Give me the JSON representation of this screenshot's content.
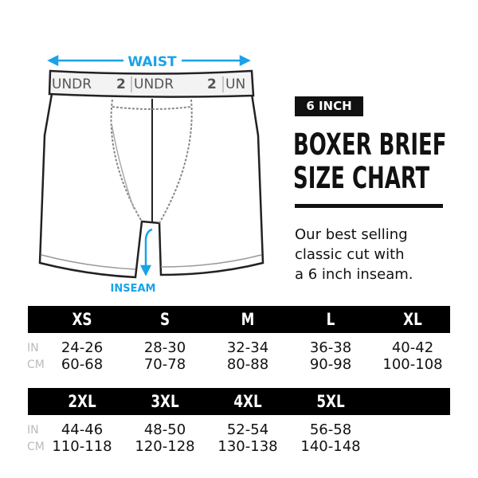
{
  "diagram": {
    "waist_label": "WAIST",
    "inseam_label": "INSEAM",
    "waistband_text": [
      "UNDR",
      "2",
      "UNDR",
      "2",
      "UN"
    ],
    "accent_color": "#1aa3e8"
  },
  "header": {
    "badge": "6 INCH",
    "title_line1": "BOXER BRIEF",
    "title_line2": "SIZE CHART",
    "description": [
      "Our best selling",
      "classic cut with",
      "a 6 inch inseam."
    ]
  },
  "table": {
    "unit_in": "IN",
    "unit_cm": "CM",
    "rows": [
      {
        "sizes": [
          {
            "size": "XS",
            "in": "24-26",
            "cm": "60-68"
          },
          {
            "size": "S",
            "in": "28-30",
            "cm": "70-78"
          },
          {
            "size": "M",
            "in": "32-34",
            "cm": "80-88"
          },
          {
            "size": "L",
            "in": "36-38",
            "cm": "90-98"
          },
          {
            "size": "XL",
            "in": "40-42",
            "cm": "100-108"
          }
        ]
      },
      {
        "sizes": [
          {
            "size": "2XL",
            "in": "44-46",
            "cm": "110-118"
          },
          {
            "size": "3XL",
            "in": "48-50",
            "cm": "120-128"
          },
          {
            "size": "4XL",
            "in": "52-54",
            "cm": "130-138"
          },
          {
            "size": "5XL",
            "in": "56-58",
            "cm": "140-148"
          }
        ]
      }
    ]
  }
}
